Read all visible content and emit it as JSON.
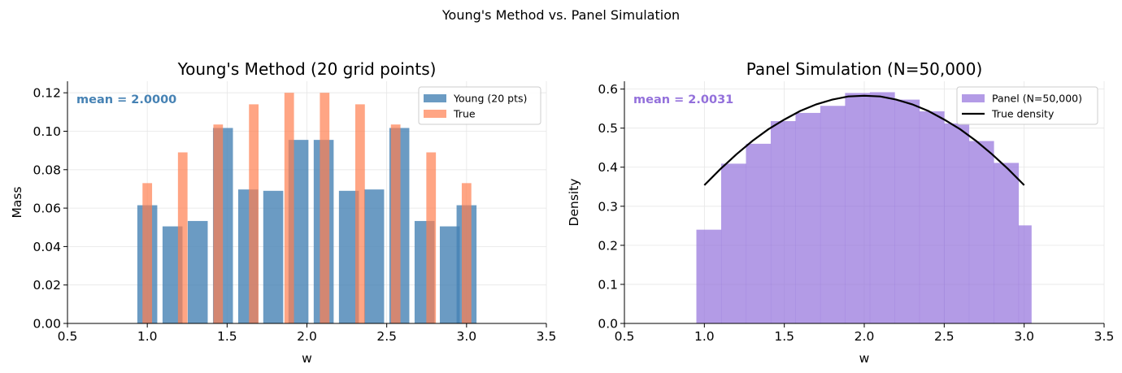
{
  "figure": {
    "suptitle": "Young's Method vs. Panel Simulation"
  },
  "chart_data": [
    {
      "type": "bar",
      "title": "Young's Method (20 grid points)",
      "xlabel": "w",
      "ylabel": "Mass",
      "xlim": [
        0.5,
        3.5
      ],
      "ylim": [
        0,
        0.126
      ],
      "xticks": [
        "0.5",
        "1.0",
        "1.5",
        "2.0",
        "2.5",
        "3.0",
        "3.5"
      ],
      "yticks": [
        "0.00",
        "0.02",
        "0.04",
        "0.06",
        "0.08",
        "0.10",
        "0.12"
      ],
      "grid": true,
      "legend_position": "top-right",
      "annotation": {
        "text": "mean = 2.0000",
        "color": "#4682b4"
      },
      "series": [
        {
          "name": "Young (20 pts)",
          "color": "#4682b4",
          "opacity": 0.8,
          "bar_width": 0.125,
          "x": [
            1.0,
            1.158,
            1.316,
            1.474,
            1.632,
            1.789,
            1.947,
            2.105,
            2.263,
            2.421,
            2.579,
            2.737,
            2.895,
            3.0
          ],
          "values": [
            0.0615,
            0.0505,
            0.0533,
            0.1017,
            0.0697,
            0.069,
            0.0955,
            0.0955,
            0.069,
            0.0697,
            0.1017,
            0.0533,
            0.0505,
            0.0615
          ]
        },
        {
          "name": "True",
          "color": "#ff7f50",
          "opacity": 0.7,
          "bar_width": 0.06,
          "x": [
            1.0,
            1.222,
            1.444,
            1.667,
            1.889,
            2.111,
            2.333,
            2.556,
            2.778,
            3.0
          ],
          "values": [
            0.073,
            0.089,
            0.1035,
            0.114,
            0.12,
            0.12,
            0.114,
            0.1035,
            0.089,
            0.073
          ]
        }
      ]
    },
    {
      "type": "bar",
      "title": "Panel Simulation (N=50,000)",
      "xlabel": "w",
      "ylabel": "Density",
      "xlim": [
        0.5,
        3.5
      ],
      "ylim": [
        0,
        0.62
      ],
      "xticks": [
        "0.5",
        "1.0",
        "1.5",
        "2.0",
        "2.5",
        "3.0",
        "3.5"
      ],
      "yticks": [
        "0.0",
        "0.1",
        "0.2",
        "0.3",
        "0.4",
        "0.5",
        "0.6"
      ],
      "grid": true,
      "legend_position": "top-right",
      "annotation": {
        "text": "mean = 2.0031",
        "color": "#9370db"
      },
      "series": [
        {
          "name": "Panel (N=50,000)",
          "kind": "histogram",
          "color": "#9370db",
          "opacity": 0.7,
          "bin_edges": [
            0.95,
            1.105,
            1.26,
            1.415,
            1.57,
            1.725,
            1.88,
            2.035,
            2.19,
            2.345,
            2.5,
            2.655,
            2.81,
            2.965,
            3.045
          ],
          "values": [
            0.24,
            0.409,
            0.46,
            0.518,
            0.539,
            0.557,
            0.59,
            0.592,
            0.573,
            0.543,
            0.512,
            0.467,
            0.411,
            0.251
          ]
        },
        {
          "name": "True density",
          "kind": "line",
          "color": "#000000",
          "x": [
            1.0,
            1.1,
            1.2,
            1.3,
            1.4,
            1.5,
            1.6,
            1.7,
            1.8,
            1.9,
            2.0,
            2.1,
            2.2,
            2.3,
            2.4,
            2.5,
            2.6,
            2.7,
            2.8,
            2.9,
            3.0
          ],
          "values": [
            0.354,
            0.395,
            0.433,
            0.467,
            0.497,
            0.522,
            0.544,
            0.561,
            0.573,
            0.581,
            0.583,
            0.581,
            0.573,
            0.561,
            0.544,
            0.522,
            0.497,
            0.467,
            0.433,
            0.395,
            0.354
          ]
        }
      ]
    }
  ]
}
